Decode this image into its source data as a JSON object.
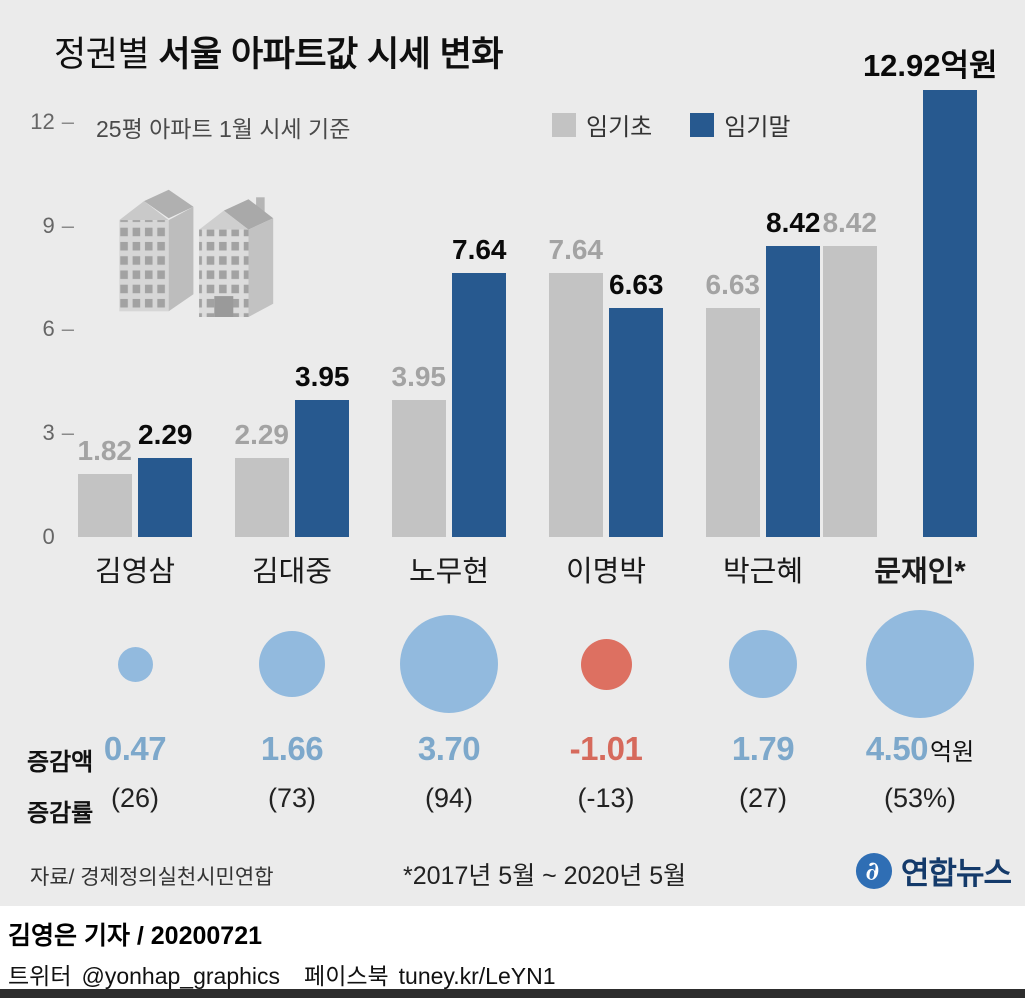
{
  "colors": {
    "bg": "#ebebeb",
    "bar_start": "#c3c3c3",
    "bar_end": "#27598f",
    "gray_label": "#a3a3a3",
    "circle_blue": "#92bade",
    "circle_red": "#dd7061",
    "amount_blue": "#7da8cb",
    "amount_red": "#d66a5c",
    "logo_blue": "#2f6eb4",
    "logo_text": "#143a6a"
  },
  "header": {
    "title_light": "정권별",
    "title_bold": " 서울 아파트값 시세 변화",
    "subtitle": "25평 아파트 1월 시세 기준"
  },
  "legend": {
    "start_label": "임기초",
    "end_label": "임기말"
  },
  "chart_data": {
    "type": "bar",
    "title": "정권별 서울 아파트값 시세 변화",
    "unit": "억원",
    "categories": [
      "김영삼",
      "김대중",
      "노무현",
      "이명박",
      "박근혜",
      "문재인*"
    ],
    "series": [
      {
        "name": "임기초",
        "values": [
          1.82,
          2.29,
          3.95,
          7.64,
          6.63,
          8.42
        ]
      },
      {
        "name": "임기말",
        "values": [
          2.29,
          3.95,
          7.64,
          6.63,
          8.42,
          12.92
        ]
      }
    ],
    "start_labels": [
      "1.82",
      "2.29",
      "3.95",
      "7.64",
      "6.63",
      "8.42"
    ],
    "end_labels": [
      "2.29",
      "3.95",
      "7.64",
      "6.63",
      "8.42",
      "12.92억원"
    ],
    "yticks": [
      12,
      9,
      6,
      3,
      0
    ],
    "ylim": [
      0,
      12.92
    ],
    "grid": false,
    "legend_position": "top"
  },
  "change": {
    "amount_label": "증감액",
    "rate_label": "증감률",
    "items": [
      {
        "amount": "0.47",
        "value": 0.47,
        "rate": "(26)",
        "negative": false,
        "suffix": ""
      },
      {
        "amount": "1.66",
        "value": 1.66,
        "rate": "(73)",
        "negative": false,
        "suffix": ""
      },
      {
        "amount": "3.70",
        "value": 3.7,
        "rate": "(94)",
        "negative": false,
        "suffix": ""
      },
      {
        "amount": "-1.01",
        "value": -1.01,
        "rate": "(-13)",
        "negative": true,
        "suffix": ""
      },
      {
        "amount": "1.79",
        "value": 1.79,
        "rate": "(27)",
        "negative": false,
        "suffix": ""
      },
      {
        "amount": "4.50",
        "value": 4.5,
        "rate": "(53%)",
        "negative": false,
        "suffix": "억원"
      }
    ]
  },
  "notes": {
    "source": "자료/ 경제정의실천시민연합",
    "period": "*2017년 5월 ~ 2020년 5월"
  },
  "logo": {
    "text": "연합뉴스"
  },
  "footer": {
    "byline": "김영은 기자 / 20200721",
    "twitter_label": "트위터",
    "twitter_handle": "@yonhap_graphics",
    "facebook_label": "페이스북",
    "facebook_url": "tuney.kr/LeYN1"
  }
}
